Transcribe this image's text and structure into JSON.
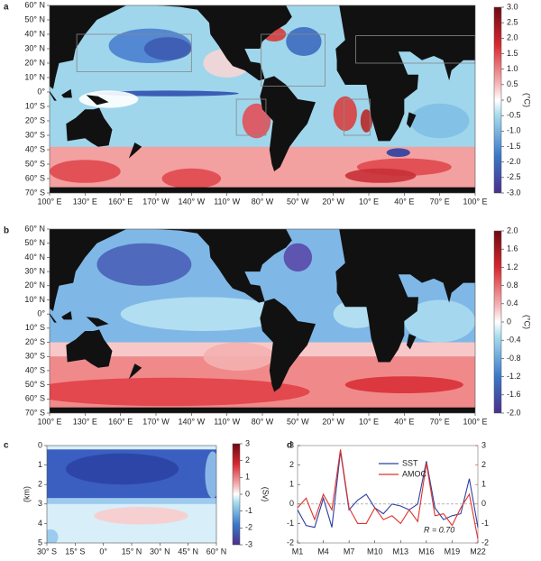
{
  "chart_data": [
    {
      "label": "a",
      "type": "map",
      "xlim": [
        100,
        460
      ],
      "xticks": [
        {
          "value": 100,
          "label": "100° E"
        },
        {
          "value": 130,
          "label": "130° E"
        },
        {
          "value": 160,
          "label": "160° E"
        },
        {
          "value": 190,
          "label": "170° W"
        },
        {
          "value": 220,
          "label": "140° W"
        },
        {
          "value": 250,
          "label": "110° W"
        },
        {
          "value": 280,
          "label": "80° W"
        },
        {
          "value": 310,
          "label": "50° W"
        },
        {
          "value": 340,
          "label": "20° W"
        },
        {
          "value": 370,
          "label": "10° E"
        },
        {
          "value": 400,
          "label": "40° E"
        },
        {
          "value": 430,
          "label": "70° E"
        },
        {
          "value": 460,
          "label": "100° E"
        }
      ],
      "ylim": [
        -70,
        60
      ],
      "yticks": [
        {
          "value": 60,
          "label": "60° N"
        },
        {
          "value": 50,
          "label": "50° N"
        },
        {
          "value": 40,
          "label": "40° N"
        },
        {
          "value": 30,
          "label": "30° N"
        },
        {
          "value": 20,
          "label": "20° N"
        },
        {
          "value": 10,
          "label": "10° N"
        },
        {
          "value": 0,
          "label": "0°"
        },
        {
          "value": -10,
          "label": "10° S"
        },
        {
          "value": -20,
          "label": "20° S"
        },
        {
          "value": -30,
          "label": "30° S"
        },
        {
          "value": -40,
          "label": "40° S"
        },
        {
          "value": -50,
          "label": "50° S"
        },
        {
          "value": -60,
          "label": "60° S"
        },
        {
          "value": -70,
          "label": "70° S"
        }
      ],
      "clim": [
        -3,
        3
      ],
      "cticks": [
        {
          "value": 3,
          "label": "3.0"
        },
        2.5,
        {
          "value": 2,
          "label": "2.0"
        },
        1.5,
        {
          "value": 1,
          "label": "1.0"
        },
        0.5,
        0,
        -0.5,
        {
          "value": -1,
          "label": "-1.0"
        },
        -1.5,
        {
          "value": -2,
          "label": "-2.0"
        },
        -2.5,
        {
          "value": -3,
          "label": "-3.0"
        }
      ],
      "clabel": "(°C)"
    },
    {
      "label": "b",
      "type": "map",
      "xlim": [
        100,
        460
      ],
      "xticks": [
        {
          "value": 100,
          "label": "100° E"
        },
        {
          "value": 130,
          "label": "130° E"
        },
        {
          "value": 160,
          "label": "160° E"
        },
        {
          "value": 190,
          "label": "170° W"
        },
        {
          "value": 220,
          "label": "140° W"
        },
        {
          "value": 250,
          "label": "110° W"
        },
        {
          "value": 280,
          "label": "80° W"
        },
        {
          "value": 310,
          "label": "50° W"
        },
        {
          "value": 340,
          "label": "20° W"
        },
        {
          "value": 370,
          "label": "10° E"
        },
        {
          "value": 400,
          "label": "40° E"
        },
        {
          "value": 430,
          "label": "70° E"
        },
        {
          "value": 460,
          "label": "100° E"
        }
      ],
      "ylim": [
        -70,
        60
      ],
      "yticks": [
        {
          "value": 60,
          "label": "60° N"
        },
        {
          "value": 50,
          "label": "50° N"
        },
        {
          "value": 40,
          "label": "40° N"
        },
        {
          "value": 30,
          "label": "30° N"
        },
        {
          "value": 20,
          "label": "20° N"
        },
        {
          "value": 10,
          "label": "10° N"
        },
        {
          "value": 0,
          "label": "0°"
        },
        {
          "value": -10,
          "label": "10° S"
        },
        {
          "value": -20,
          "label": "20° S"
        },
        {
          "value": -30,
          "label": "30° S"
        },
        {
          "value": -40,
          "label": "40° S"
        },
        {
          "value": -50,
          "label": "50° S"
        },
        {
          "value": -60,
          "label": "60° S"
        },
        {
          "value": -70,
          "label": "70° S"
        }
      ],
      "clim": [
        -2,
        2
      ],
      "cticks": [
        {
          "value": 2,
          "label": "2.0"
        },
        1.6,
        1.2,
        0.8,
        0.4,
        0,
        -0.4,
        -0.8,
        -1.2,
        -1.6,
        {
          "value": -2,
          "label": "-2.0"
        }
      ],
      "clabel": "(°C)"
    },
    {
      "label": "c",
      "type": "section",
      "xlim": [
        -30,
        60
      ],
      "xticks": [
        {
          "value": -30,
          "label": "30° S"
        },
        {
          "value": -15,
          "label": "15° S"
        },
        {
          "value": 0,
          "label": "0°"
        },
        {
          "value": 15,
          "label": "15° N"
        },
        {
          "value": 30,
          "label": "30° N"
        },
        {
          "value": 45,
          "label": "45° N"
        },
        {
          "value": 60,
          "label": "60° N"
        }
      ],
      "ylim": [
        0,
        5
      ],
      "y_inverted": true,
      "yticks": [
        0,
        1,
        2,
        3,
        4,
        5
      ],
      "ylabel": "(km)",
      "clim": [
        -3,
        3
      ],
      "cticks": [
        3,
        2,
        1,
        0,
        -1,
        -2,
        -3
      ],
      "clabel": "(Sv)"
    },
    {
      "label": "d",
      "type": "line",
      "categories": [
        "M1",
        null,
        null,
        "M4",
        null,
        null,
        "M7",
        null,
        null,
        "M10",
        null,
        null,
        "M13",
        null,
        null,
        "M16",
        null,
        null,
        "M19",
        null,
        null,
        "M22"
      ],
      "series": [
        {
          "name": "SST",
          "color": "#2b3fa0",
          "values": [
            -0.3,
            -1.1,
            -1.2,
            0.3,
            -1.2,
            2.7,
            -0.3,
            0.2,
            0.5,
            -0.2,
            -0.5,
            0.0,
            -0.1,
            -0.3,
            0.0,
            2.2,
            -0.2,
            -0.8,
            -0.6,
            -0.5,
            1.3,
            -1.2
          ]
        },
        {
          "name": "AMOC",
          "color": "#e0302a",
          "axis": "y2",
          "values": [
            -0.2,
            0.3,
            -0.8,
            0.5,
            -0.3,
            2.8,
            -0.2,
            -1.0,
            -1.0,
            -0.2,
            -0.8,
            -0.6,
            -1.0,
            -0.3,
            -0.9,
            2.1,
            -0.6,
            -0.5,
            -1.1,
            -0.2,
            0.5,
            -1.8
          ]
        }
      ],
      "ylim": [
        -2,
        3
      ],
      "yticks": [
        3,
        2,
        1,
        0,
        -1,
        -2
      ],
      "y2lim": [
        -2,
        3
      ],
      "y2ticks": [
        3,
        2,
        1,
        0,
        -1,
        -2
      ],
      "y2color": "#e0302a",
      "zero_line": true,
      "legend": "upper-right",
      "annotation": "R = 0.70"
    }
  ]
}
